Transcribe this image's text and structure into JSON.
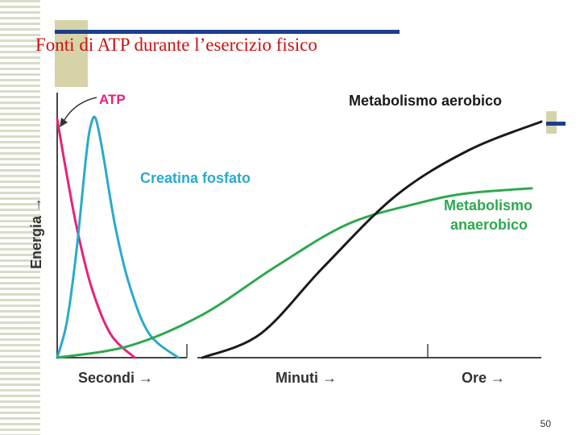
{
  "slide": {
    "title": "Fonti di ATP durante l’esercizio fisico",
    "page_number": "50"
  },
  "chart_data": {
    "type": "line",
    "title": "",
    "xlabel": "",
    "ylabel": "Energia →",
    "x_segments": [
      "Secondi →",
      "Minuti →",
      "Ore →"
    ],
    "series": [
      {
        "name": "ATP",
        "color": "#e8217a",
        "points": [
          [
            0.0,
            1.0
          ],
          [
            0.017,
            0.8
          ],
          [
            0.04,
            0.55
          ],
          [
            0.07,
            0.3
          ],
          [
            0.11,
            0.1
          ],
          [
            0.16,
            0.0
          ]
        ]
      },
      {
        "name": "Creatina fosfato",
        "color": "#2aaacb",
        "points": [
          [
            0.0,
            0.0
          ],
          [
            0.02,
            0.15
          ],
          [
            0.04,
            0.45
          ],
          [
            0.06,
            0.85
          ],
          [
            0.07,
            0.98
          ],
          [
            0.08,
            1.0
          ],
          [
            0.095,
            0.85
          ],
          [
            0.12,
            0.55
          ],
          [
            0.15,
            0.3
          ],
          [
            0.19,
            0.1
          ],
          [
            0.25,
            0.0
          ]
        ]
      },
      {
        "name": "Metabolismo anaerobico",
        "color": "#2ea84f",
        "points": [
          [
            0.0,
            0.0
          ],
          [
            0.15,
            0.05
          ],
          [
            0.3,
            0.18
          ],
          [
            0.45,
            0.38
          ],
          [
            0.6,
            0.56
          ],
          [
            0.75,
            0.65
          ],
          [
            0.85,
            0.69
          ],
          [
            0.98,
            0.71
          ]
        ]
      },
      {
        "name": "Metabolismo aerobico",
        "color": "#1a1a1a",
        "points": [
          [
            0.3,
            0.0
          ],
          [
            0.42,
            0.1
          ],
          [
            0.55,
            0.38
          ],
          [
            0.7,
            0.68
          ],
          [
            0.85,
            0.87
          ],
          [
            1.0,
            0.99
          ]
        ]
      }
    ],
    "xlim": [
      0,
      1
    ],
    "ylim": [
      0,
      1
    ],
    "grid": false,
    "legend": "labels-inline"
  }
}
